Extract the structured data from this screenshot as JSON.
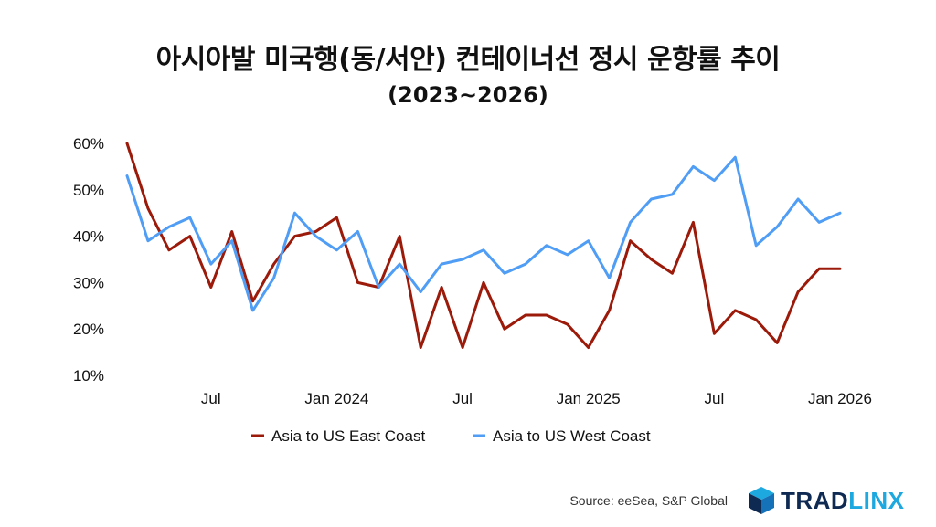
{
  "title": "아시아발 미국행(동/서안) 컨테이너선 정시 운항률 추이",
  "subtitle": "(2023~2026)",
  "source": "Source: eeSea, S&P Global",
  "logo": {
    "part1": "TRAD",
    "part2": "LINX"
  },
  "chart_data": {
    "type": "line",
    "title": "아시아발 미국행(동/서안) 컨테이너선 정시 운항률 추이",
    "subtitle": "(2023~2026)",
    "xlabel": "",
    "ylabel": "",
    "ylim": [
      10,
      60
    ],
    "yticks": [
      60,
      50,
      40,
      30,
      20,
      10
    ],
    "ytick_labels": [
      "60%",
      "50%",
      "40%",
      "30%",
      "20%",
      "10%"
    ],
    "x_count": 35,
    "xticks": [
      {
        "index": 4,
        "label": "Jul"
      },
      {
        "index": 10,
        "label": "Jan 2024"
      },
      {
        "index": 16,
        "label": "Jul"
      },
      {
        "index": 22,
        "label": "Jan 2025"
      },
      {
        "index": 28,
        "label": "Jul"
      },
      {
        "index": 34,
        "label": "Jan 2026"
      }
    ],
    "legend_position": "bottom-center",
    "series": [
      {
        "name": "Asia to US East Coast",
        "color": "#9b1a0a",
        "values": [
          60,
          46,
          37,
          40,
          29,
          41,
          26,
          34,
          40,
          41,
          44,
          30,
          29,
          40,
          16,
          29,
          16,
          30,
          20,
          23,
          23,
          21,
          16,
          24,
          39,
          35,
          32,
          43,
          19,
          24,
          22,
          17,
          28,
          33,
          33
        ]
      },
      {
        "name": "Asia to US West Coast",
        "color": "#4f9df5",
        "values": [
          53,
          39,
          42,
          44,
          34,
          39,
          24,
          31,
          45,
          40,
          37,
          41,
          29,
          34,
          28,
          34,
          35,
          37,
          32,
          34,
          38,
          36,
          39,
          31,
          43,
          48,
          49,
          55,
          52,
          57,
          38,
          42,
          48,
          43,
          45
        ]
      }
    ]
  }
}
